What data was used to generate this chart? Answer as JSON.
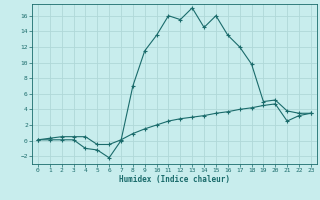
{
  "xlabel": "Humidex (Indice chaleur)",
  "background_color": "#c8eded",
  "grid_color": "#b0d8d8",
  "line_color": "#1a6b6b",
  "xlim": [
    -0.5,
    23.5
  ],
  "ylim": [
    -3.0,
    17.5
  ],
  "xticks": [
    0,
    1,
    2,
    3,
    4,
    5,
    6,
    7,
    8,
    9,
    10,
    11,
    12,
    13,
    14,
    15,
    16,
    17,
    18,
    19,
    20,
    21,
    22,
    23
  ],
  "yticks": [
    -2,
    0,
    2,
    4,
    6,
    8,
    10,
    12,
    14,
    16
  ],
  "line1_x": [
    0,
    1,
    2,
    3,
    4,
    5,
    6,
    7,
    8,
    9,
    10,
    11,
    12,
    13,
    14,
    15,
    16,
    17,
    18,
    19,
    20,
    21,
    22,
    23
  ],
  "line1_y": [
    0.1,
    0.1,
    0.1,
    0.1,
    -1.0,
    -1.2,
    -2.2,
    0.0,
    7.0,
    11.5,
    13.5,
    16.0,
    15.5,
    17.0,
    14.5,
    16.0,
    13.5,
    12.0,
    9.8,
    5.0,
    5.2,
    3.8,
    3.5,
    3.5
  ],
  "line2_x": [
    0,
    1,
    2,
    3,
    4,
    5,
    6,
    7,
    8,
    9,
    10,
    11,
    12,
    13,
    14,
    15,
    16,
    17,
    18,
    19,
    20,
    21,
    22,
    23
  ],
  "line2_y": [
    0.1,
    0.3,
    0.5,
    0.5,
    0.5,
    -0.5,
    -0.5,
    0.1,
    0.9,
    1.5,
    2.0,
    2.5,
    2.8,
    3.0,
    3.2,
    3.5,
    3.7,
    4.0,
    4.2,
    4.5,
    4.7,
    2.5,
    3.2,
    3.5
  ]
}
